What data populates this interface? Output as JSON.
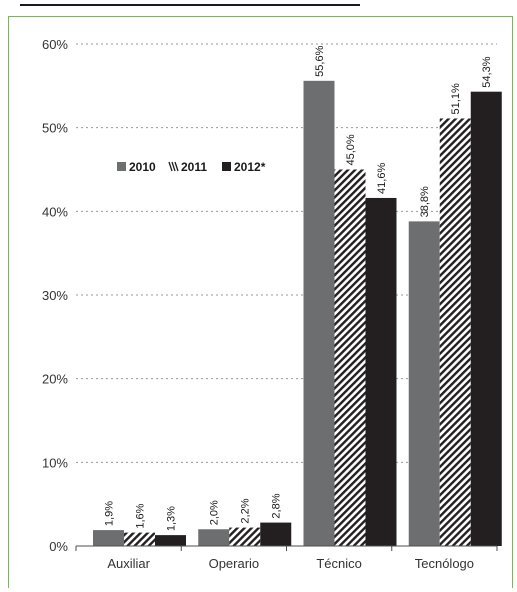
{
  "chart_data": {
    "type": "bar",
    "categories": [
      "Auxiliar",
      "Operario",
      "Técnico",
      "Tecnólogo"
    ],
    "series": [
      {
        "name": "2010",
        "values": [
          1.9,
          2.0,
          55.6,
          38.8
        ],
        "labels": [
          "1,9%",
          "2,0%",
          "55,6%",
          "38,8%"
        ]
      },
      {
        "name": "2011",
        "values": [
          1.6,
          2.2,
          45.0,
          51.1
        ],
        "labels": [
          "1,6%",
          "2,2%",
          "45,0%",
          "51,1%"
        ]
      },
      {
        "name": "2012*",
        "values": [
          1.3,
          2.8,
          41.6,
          54.3
        ],
        "labels": [
          "1,3%",
          "2,8%",
          "41,6%",
          "54,3%"
        ]
      }
    ],
    "yticks": [
      "0%",
      "10%",
      "20%",
      "30%",
      "40%",
      "50%",
      "60%"
    ],
    "ylim": [
      0,
      60
    ],
    "grid": true,
    "legend": "upper-left"
  },
  "colors": {
    "s2010": "#6d6e70",
    "s2011_hatch": "#231f20",
    "s2012": "#231f20",
    "frame": "#6fc044"
  }
}
